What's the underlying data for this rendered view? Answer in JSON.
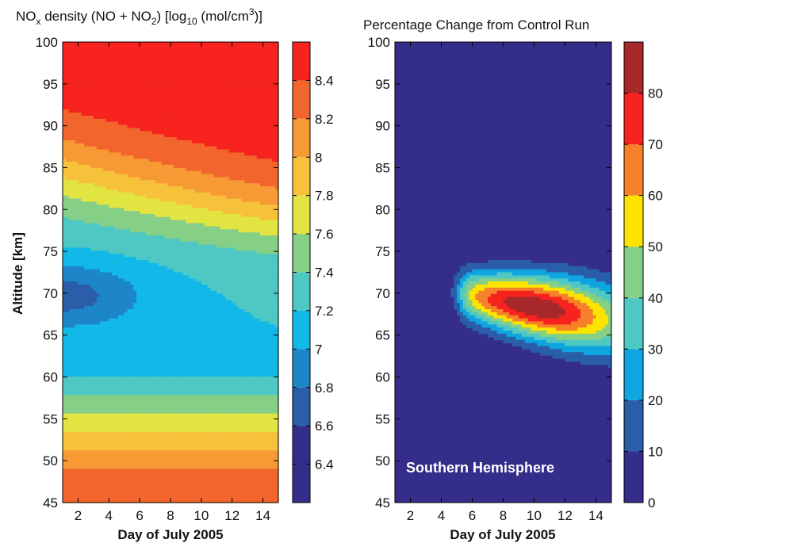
{
  "chart_data": [
    {
      "type": "heatmap",
      "panel": "left",
      "title": "NOx density (NO + NO2) [log10 (mol/cm3)]",
      "title_parts": {
        "a": "NO",
        "a_sub": "x",
        "b": " density (NO + NO",
        "b_sub": "2",
        "c": ") [log",
        "c_sub": "10",
        "d": " (mol/cm",
        "d_sup": "3",
        "e": ")]"
      },
      "xlabel": "Day of July 2005",
      "ylabel": "Altitude [km]",
      "xlim": [
        1,
        15
      ],
      "ylim": [
        45,
        100
      ],
      "x_ticks": [
        2,
        4,
        6,
        8,
        10,
        12,
        14
      ],
      "y_ticks": [
        45,
        50,
        55,
        60,
        65,
        70,
        75,
        80,
        85,
        90,
        95,
        100
      ],
      "colorbar": {
        "levels": [
          6.2,
          6.6,
          6.8,
          7.0,
          7.2,
          7.4,
          7.6,
          7.8,
          8.0,
          8.2,
          8.4,
          8.6
        ],
        "ticks": [
          6.4,
          6.6,
          6.8,
          7.0,
          7.2,
          7.4,
          7.6,
          7.8,
          8.0,
          8.2,
          8.4
        ],
        "tick_labels": [
          "6.4",
          "6.6",
          "6.8",
          "7",
          "7.2",
          "7.4",
          "7.6",
          "7.8",
          "8",
          "8.2",
          "8.4"
        ],
        "colors": [
          "#342d8a",
          "#2a5ea8",
          "#1d86c9",
          "#12b9e8",
          "#4fc8c4",
          "#86cf86",
          "#e2e442",
          "#f7c23b",
          "#f79a35",
          "#f2662d",
          "#f7231f",
          "#a7282a"
        ]
      }
    },
    {
      "type": "heatmap",
      "panel": "right",
      "title": "Percentage Change from Control Run",
      "xlabel": "Day of July 2005",
      "ylabel": "",
      "xlim": [
        1,
        15
      ],
      "ylim": [
        45,
        100
      ],
      "x_ticks": [
        2,
        4,
        6,
        8,
        10,
        12,
        14
      ],
      "y_ticks": [
        45,
        50,
        55,
        60,
        65,
        70,
        75,
        80,
        85,
        90,
        95,
        100
      ],
      "annotation": "Southern Hemisphere",
      "colorbar": {
        "levels": [
          0,
          10,
          20,
          30,
          40,
          50,
          60,
          70,
          80,
          90
        ],
        "ticks": [
          0,
          10,
          20,
          30,
          40,
          50,
          60,
          70,
          80
        ],
        "tick_labels": [
          "0",
          "10",
          "20",
          "30",
          "40",
          "50",
          "60",
          "70",
          "80"
        ],
        "colors": [
          "#342d8a",
          "#2a5ea8",
          "#0ea5e0",
          "#4fc8c4",
          "#86cf86",
          "#fde400",
          "#f7802b",
          "#f7231f",
          "#a7282a"
        ]
      },
      "peak": {
        "x": 10,
        "y": 68.5,
        "value": 85
      }
    }
  ]
}
